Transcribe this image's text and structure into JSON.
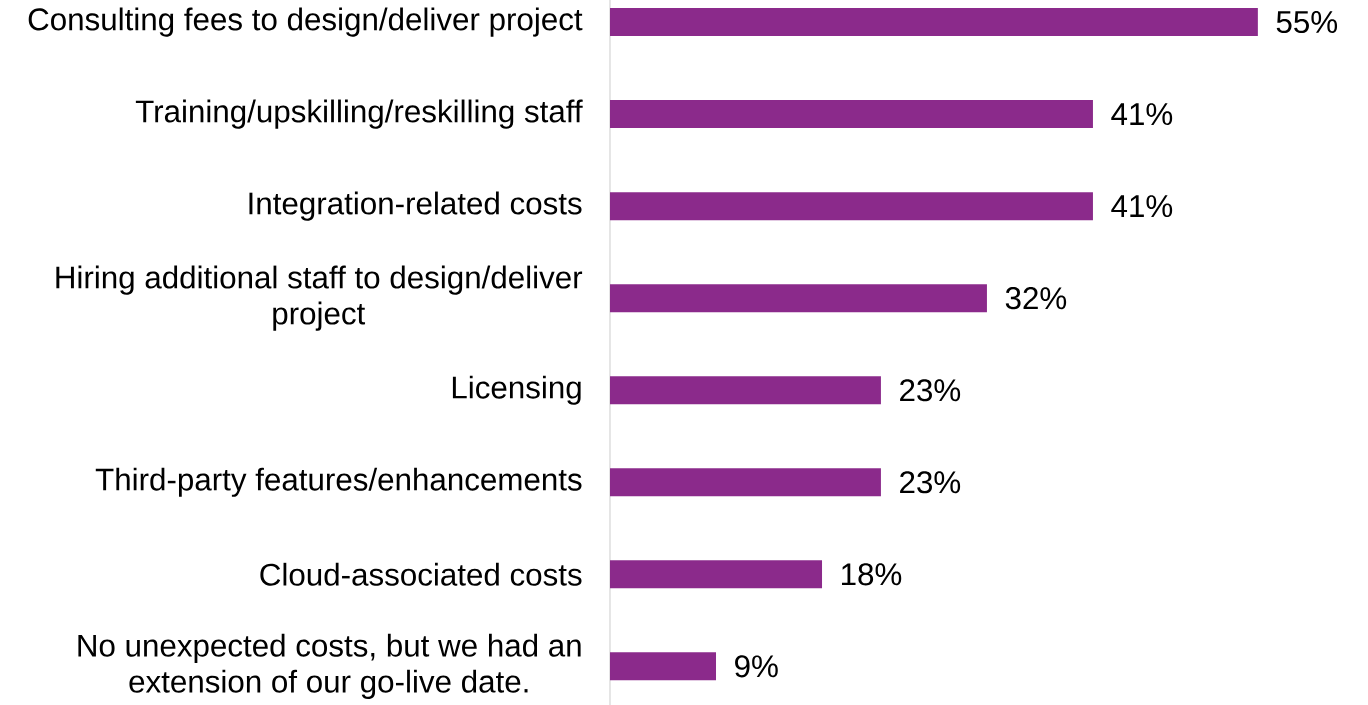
{
  "chart_data": {
    "type": "bar",
    "orientation": "horizontal",
    "categories": [
      "Consulting fees to design/deliver project",
      "Training/upskilling/reskilling staff",
      "Integration-related costs",
      "Hiring additional staff to design/deliver project",
      "Licensing",
      "Third-party features/enhancements",
      "Cloud-associated costs",
      "No unexpected costs, but we had an extension of our go-live date."
    ],
    "values": [
      55,
      41,
      41,
      32,
      23,
      23,
      18,
      9
    ],
    "value_labels": [
      "55%",
      "41%",
      "41%",
      "32%",
      "23%",
      "23%",
      "18%",
      "9%"
    ],
    "color": "#8b2a8b"
  }
}
